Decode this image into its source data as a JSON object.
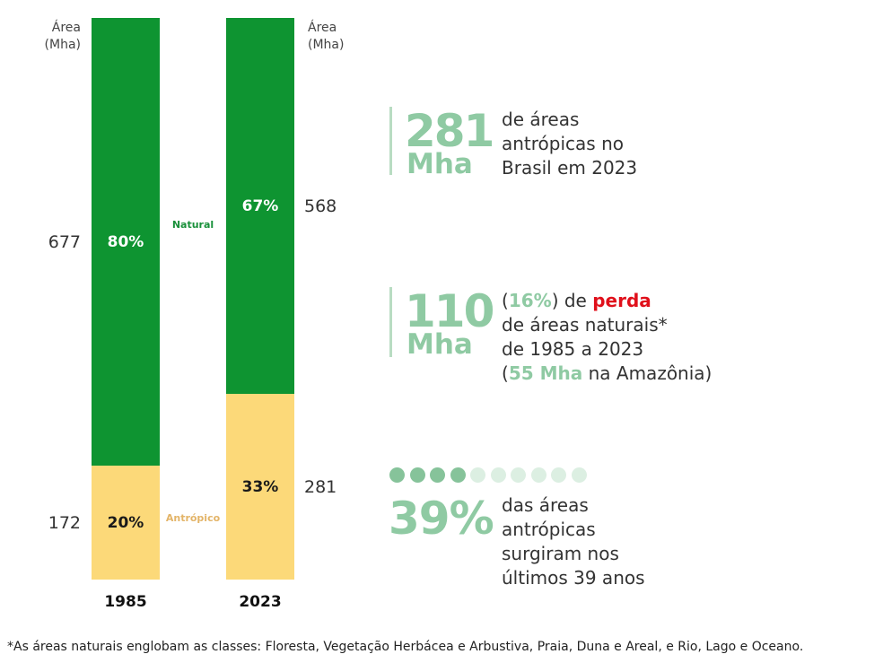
{
  "chart_data": {
    "type": "bar",
    "subtype": "stacked-100",
    "categories": [
      "1985",
      "2023"
    ],
    "series": [
      {
        "name": "Natural",
        "values": [
          677,
          568
        ],
        "percent_labels": [
          "80%",
          "67%"
        ],
        "color": "#0e9431"
      },
      {
        "name": "Antrópico",
        "values": [
          172,
          281
        ],
        "percent_labels": [
          "20%",
          "33%"
        ],
        "color": "#fcd979"
      }
    ],
    "left_axis_label": "Área\n(Mha)",
    "right_axis_label": "Área\n(Mha)",
    "left_values": [
      "677",
      "172"
    ],
    "right_values": [
      "568",
      "281"
    ],
    "legend_natural_color": "#19903a",
    "legend_antropico_color": "#e3b468"
  },
  "stats": [
    {
      "number": "281",
      "unit": "Mha",
      "text_lines": [
        "de áreas",
        "antrópicas no",
        "Brasil em 2023"
      ]
    },
    {
      "number": "110",
      "unit": "Mha",
      "line1": {
        "open": "(",
        "pct": "16%",
        "mid": ") de ",
        "perda": "perda"
      },
      "line2": "de áreas naturais*",
      "line3": "de 1985 a 2023",
      "line4": {
        "open": "(",
        "mha": "55 Mha",
        "rest": " na Amazônia)"
      }
    },
    {
      "dots_filled": 4,
      "dots_total": 10,
      "number": "39%",
      "text_lines": [
        "das áreas",
        "antrópicas",
        "surgiram nos",
        "últimos 39 anos"
      ]
    }
  ],
  "colors": {
    "accent_green_light": "#8fcaa3",
    "dot_filled": "#86c39a",
    "dot_empty": "#dcefe2",
    "highlight_red": "#e0101b"
  },
  "footnote": "*As áreas naturais englobam as classes: Floresta, Vegetação Herbácea e Arbustiva, Praia, Duna e Areal, e Rio, Lago e Oceano."
}
